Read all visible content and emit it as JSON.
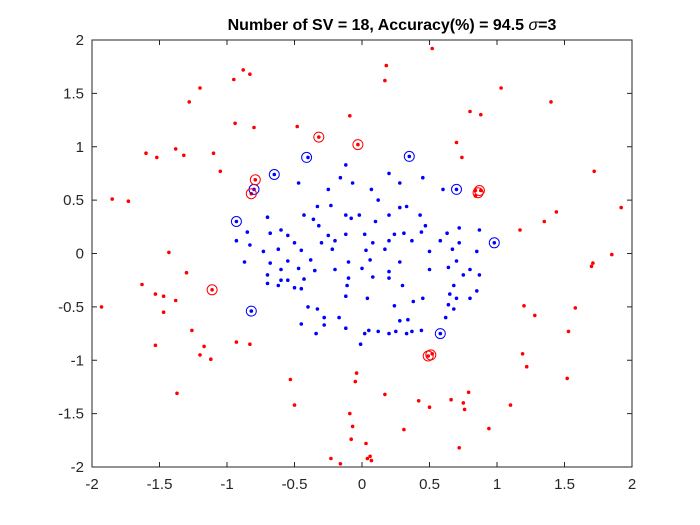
{
  "chart_data": {
    "type": "scatter",
    "title": "Number of SV = 18,  Accuracy(%) = 94.5 σ=3",
    "title_parts": {
      "main": "Number of SV = 18,  Accuracy(%) = 94.5 ",
      "sigma_symbol": "σ",
      "sigma_value": "=3"
    },
    "xlabel": "",
    "ylabel": "",
    "xlim": [
      -2,
      2
    ],
    "ylim": [
      -2,
      2
    ],
    "xticks": [
      -2,
      -1.5,
      -1,
      -0.5,
      0,
      0.5,
      1,
      1.5,
      2
    ],
    "yticks": [
      -2,
      -1.5,
      -1,
      -0.5,
      0,
      0.5,
      1,
      1.5,
      2
    ],
    "xtick_labels": [
      "-2",
      "-1.5",
      "-1",
      "-0.5",
      "0",
      "0.5",
      "1",
      "1.5",
      "2"
    ],
    "ytick_labels": [
      "-2",
      "-1.5",
      "-1",
      "-0.5",
      "0",
      "0.5",
      "1",
      "1.5",
      "2"
    ],
    "grid": false,
    "legend": "none",
    "colors": {
      "class_outer": "#ff0000",
      "class_inner": "#0000ff",
      "axes": "#262626"
    },
    "series": [
      {
        "color": "#ff0000",
        "marker": "dot",
        "points": [
          [
            0.52,
            1.92
          ],
          [
            -0.88,
            1.72
          ],
          [
            -0.83,
            1.68
          ],
          [
            -0.95,
            1.63
          ],
          [
            0.17,
            1.62
          ],
          [
            0.18,
            1.76
          ],
          [
            1.03,
            1.55
          ],
          [
            -1.2,
            1.55
          ],
          [
            -1.28,
            1.42
          ],
          [
            1.4,
            1.42
          ],
          [
            0.8,
            1.33
          ],
          [
            0.88,
            1.3
          ],
          [
            -0.09,
            1.29
          ],
          [
            -0.94,
            1.22
          ],
          [
            -0.8,
            1.18
          ],
          [
            -0.48,
            1.19
          ],
          [
            -0.32,
            1.09
          ],
          [
            0.7,
            1.04
          ],
          [
            -0.03,
            1.02
          ],
          [
            -1.6,
            0.94
          ],
          [
            -1.38,
            0.98
          ],
          [
            -1.32,
            0.92
          ],
          [
            -1.1,
            0.94
          ],
          [
            -1.52,
            0.9
          ],
          [
            0.74,
            0.9
          ],
          [
            -0.79,
            0.69
          ],
          [
            -1.05,
            0.77
          ],
          [
            0.84,
            0.54
          ],
          [
            0.84,
            0.59
          ],
          [
            0.88,
            0.59
          ],
          [
            -0.82,
            0.56
          ],
          [
            1.72,
            0.77
          ],
          [
            -1.85,
            0.51
          ],
          [
            -1.73,
            0.49
          ],
          [
            1.35,
            0.3
          ],
          [
            1.44,
            0.39
          ],
          [
            1.17,
            0.22
          ],
          [
            1.92,
            0.43
          ],
          [
            -1.43,
            0.01
          ],
          [
            1.7,
            -0.12
          ],
          [
            1.71,
            -0.09
          ],
          [
            1.85,
            -0.01
          ],
          [
            -1.3,
            -0.18
          ],
          [
            -1.63,
            -0.29
          ],
          [
            -1.53,
            -0.38
          ],
          [
            -1.47,
            -0.4
          ],
          [
            -1.38,
            -0.44
          ],
          [
            -1.11,
            -0.34
          ],
          [
            -1.93,
            -0.5
          ],
          [
            -1.47,
            -0.55
          ],
          [
            1.58,
            -0.51
          ],
          [
            1.2,
            -0.49
          ],
          [
            1.28,
            -0.58
          ],
          [
            -1.26,
            -0.72
          ],
          [
            1.53,
            -0.73
          ],
          [
            -0.93,
            -0.83
          ],
          [
            -0.83,
            -0.85
          ],
          [
            -1.17,
            -0.87
          ],
          [
            -1.2,
            -0.95
          ],
          [
            -1.53,
            -0.86
          ],
          [
            -1.12,
            -0.99
          ],
          [
            1.19,
            -0.94
          ],
          [
            1.22,
            -1.06
          ],
          [
            0.49,
            -0.96
          ],
          [
            0.52,
            -0.94
          ],
          [
            -0.04,
            -1.12
          ],
          [
            -0.05,
            -1.2
          ],
          [
            1.52,
            -1.17
          ],
          [
            -0.53,
            -1.18
          ],
          [
            -1.37,
            -1.31
          ],
          [
            0.17,
            -1.32
          ],
          [
            0.42,
            -1.38
          ],
          [
            0.66,
            -1.37
          ],
          [
            0.79,
            -1.3
          ],
          [
            0.75,
            -1.4
          ],
          [
            0.76,
            -1.46
          ],
          [
            1.1,
            -1.42
          ],
          [
            -0.5,
            -1.42
          ],
          [
            0.5,
            -1.44
          ],
          [
            -0.09,
            -1.5
          ],
          [
            -0.07,
            -1.62
          ],
          [
            0.31,
            -1.65
          ],
          [
            0.94,
            -1.64
          ],
          [
            -0.08,
            -1.74
          ],
          [
            0.72,
            -1.82
          ],
          [
            0.03,
            -1.78
          ],
          [
            0.06,
            -1.9
          ],
          [
            0.04,
            -1.92
          ],
          [
            0.07,
            -1.94
          ],
          [
            -0.23,
            -1.92
          ],
          [
            -0.16,
            -1.97
          ]
        ]
      },
      {
        "color": "#0000ff",
        "marker": "dot",
        "points": [
          [
            -0.4,
            0.9
          ],
          [
            0.35,
            0.91
          ],
          [
            -0.12,
            0.83
          ],
          [
            -0.65,
            0.74
          ],
          [
            0.2,
            0.75
          ],
          [
            0.45,
            0.71
          ],
          [
            -0.16,
            0.71
          ],
          [
            0.6,
            0.6
          ],
          [
            0.7,
            0.6
          ],
          [
            0.07,
            0.6
          ],
          [
            -0.07,
            0.66
          ],
          [
            -0.25,
            0.6
          ],
          [
            0.28,
            0.66
          ],
          [
            -0.47,
            0.66
          ],
          [
            -0.8,
            0.6
          ],
          [
            0.12,
            0.5
          ],
          [
            0.28,
            0.43
          ],
          [
            0.33,
            0.44
          ],
          [
            -0.33,
            0.44
          ],
          [
            -0.23,
            0.45
          ],
          [
            -0.7,
            0.34
          ],
          [
            -0.43,
            0.36
          ],
          [
            -0.12,
            0.36
          ],
          [
            -0.02,
            0.36
          ],
          [
            0.2,
            0.36
          ],
          [
            0.43,
            0.36
          ],
          [
            -0.93,
            0.3
          ],
          [
            -0.36,
            0.32
          ],
          [
            -0.6,
            0.22
          ],
          [
            -0.08,
            0.33
          ],
          [
            0.1,
            0.3
          ],
          [
            -0.32,
            0.26
          ],
          [
            0.47,
            0.26
          ],
          [
            0.72,
            0.24
          ],
          [
            0.87,
            0.22
          ],
          [
            -0.85,
            0.2
          ],
          [
            -0.68,
            0.19
          ],
          [
            -0.55,
            0.17
          ],
          [
            -0.25,
            0.17
          ],
          [
            -0.12,
            0.18
          ],
          [
            0.02,
            0.18
          ],
          [
            0.24,
            0.18
          ],
          [
            0.31,
            0.19
          ],
          [
            0.44,
            0.2
          ],
          [
            0.63,
            0.19
          ],
          [
            0.98,
            0.1
          ],
          [
            -0.93,
            0.12
          ],
          [
            -0.83,
            0.08
          ],
          [
            -0.5,
            0.1
          ],
          [
            -0.3,
            0.1
          ],
          [
            -0.2,
            0.12
          ],
          [
            0.08,
            0.1
          ],
          [
            0.2,
            0.12
          ],
          [
            0.37,
            0.12
          ],
          [
            0.58,
            0.12
          ],
          [
            0.72,
            0.1
          ],
          [
            -0.73,
            0.02
          ],
          [
            -0.62,
            0.04
          ],
          [
            -0.45,
            0.03
          ],
          [
            -0.22,
            0.04
          ],
          [
            0.03,
            0.03
          ],
          [
            0.17,
            0.04
          ],
          [
            0.5,
            0.02
          ],
          [
            0.67,
            0.04
          ],
          [
            0.85,
            0.02
          ],
          [
            -0.87,
            -0.08
          ],
          [
            -0.68,
            -0.09
          ],
          [
            -0.55,
            -0.07
          ],
          [
            -0.38,
            -0.06
          ],
          [
            -0.1,
            -0.08
          ],
          [
            0.06,
            -0.06
          ],
          [
            0.28,
            -0.08
          ],
          [
            0.7,
            -0.07
          ],
          [
            -0.6,
            -0.15
          ],
          [
            -0.47,
            -0.14
          ],
          [
            -0.35,
            -0.16
          ],
          [
            -0.2,
            -0.15
          ],
          [
            0.0,
            -0.14
          ],
          [
            0.2,
            -0.17
          ],
          [
            0.5,
            -0.15
          ],
          [
            0.64,
            -0.13
          ],
          [
            0.8,
            -0.15
          ],
          [
            -0.7,
            -0.2
          ],
          [
            -0.6,
            -0.25
          ],
          [
            -0.55,
            -0.25
          ],
          [
            -0.43,
            -0.24
          ],
          [
            -0.1,
            -0.23
          ],
          [
            0.08,
            -0.22
          ],
          [
            0.2,
            -0.23
          ],
          [
            0.75,
            -0.2
          ],
          [
            0.87,
            -0.2
          ],
          [
            -0.7,
            -0.28
          ],
          [
            -0.62,
            -0.3
          ],
          [
            -0.5,
            -0.32
          ],
          [
            -0.45,
            -0.33
          ],
          [
            -0.11,
            -0.3
          ],
          [
            0.3,
            -0.3
          ],
          [
            0.68,
            -0.3
          ],
          [
            -0.12,
            -0.4
          ],
          [
            0.04,
            -0.42
          ],
          [
            0.45,
            -0.42
          ],
          [
            0.65,
            -0.38
          ],
          [
            0.7,
            -0.42
          ],
          [
            0.8,
            -0.42
          ],
          [
            0.85,
            -0.35
          ],
          [
            -0.82,
            -0.54
          ],
          [
            -0.4,
            -0.5
          ],
          [
            -0.33,
            -0.52
          ],
          [
            0.24,
            -0.49
          ],
          [
            0.38,
            -0.45
          ],
          [
            0.64,
            -0.48
          ],
          [
            0.68,
            -0.52
          ],
          [
            -0.45,
            -0.66
          ],
          [
            -0.28,
            -0.6
          ],
          [
            -0.17,
            -0.6
          ],
          [
            0.28,
            -0.63
          ],
          [
            0.34,
            -0.62
          ],
          [
            0.62,
            -0.6
          ],
          [
            -0.28,
            -0.67
          ],
          [
            -0.12,
            -0.7
          ],
          [
            0.05,
            -0.72
          ],
          [
            0.12,
            -0.73
          ],
          [
            0.37,
            -0.73
          ],
          [
            0.44,
            -0.72
          ],
          [
            -0.34,
            -0.75
          ],
          [
            0.02,
            -0.75
          ],
          [
            0.2,
            -0.75
          ],
          [
            0.25,
            -0.73
          ],
          [
            0.33,
            -0.75
          ],
          [
            -0.01,
            -0.85
          ],
          [
            0.58,
            -0.75
          ]
        ]
      }
    ],
    "support_vectors": [
      {
        "color": "#0000ff",
        "points": [
          [
            -0.41,
            0.9
          ],
          [
            0.35,
            0.91
          ],
          [
            -0.65,
            0.74
          ],
          [
            -0.8,
            0.6
          ],
          [
            0.7,
            0.6
          ],
          [
            -0.93,
            0.3
          ],
          [
            0.98,
            0.1
          ],
          [
            -0.82,
            -0.54
          ],
          [
            0.58,
            -0.75
          ]
        ]
      },
      {
        "color": "#ff0000",
        "points": [
          [
            -0.32,
            1.09
          ],
          [
            -0.03,
            1.02
          ],
          [
            -0.79,
            0.69
          ],
          [
            -0.82,
            0.56
          ],
          [
            0.86,
            0.57
          ],
          [
            0.87,
            0.59
          ],
          [
            -1.11,
            -0.34
          ],
          [
            0.49,
            -0.96
          ],
          [
            0.51,
            -0.95
          ]
        ]
      }
    ]
  }
}
